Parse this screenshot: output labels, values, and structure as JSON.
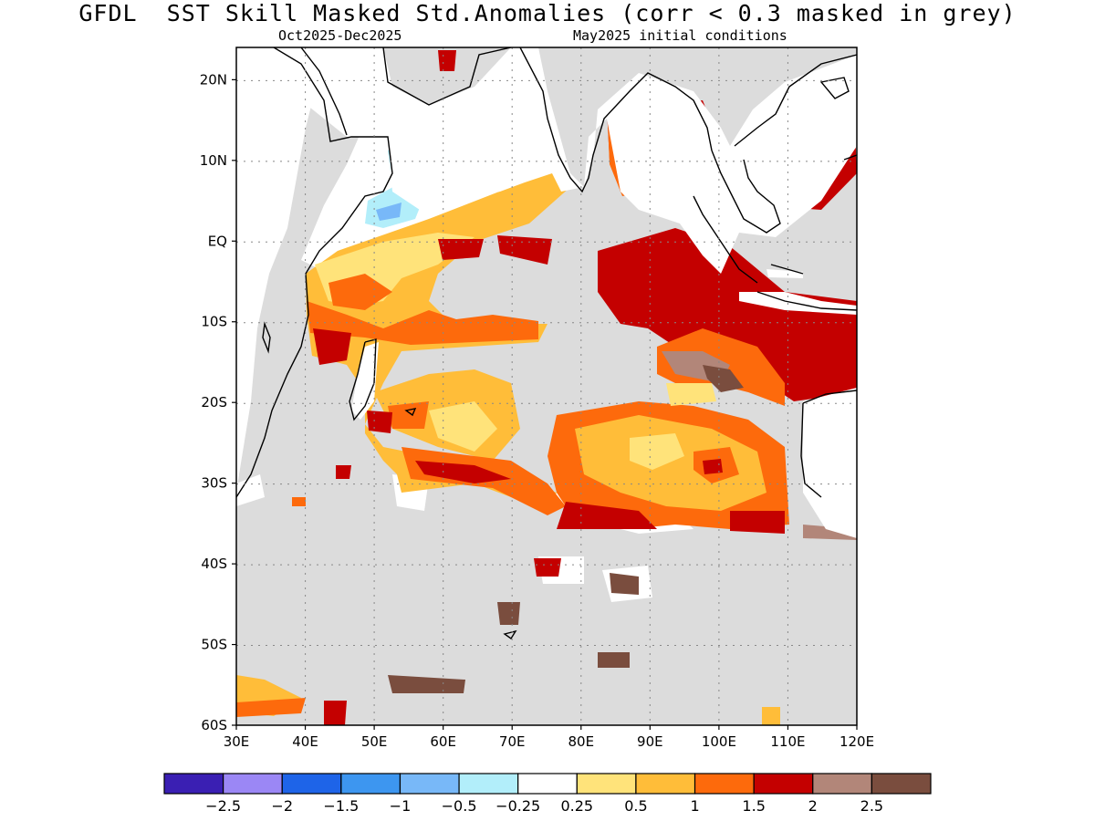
{
  "title": "GFDL  SST Skill Masked Std.Anomalies (corr < 0.3 masked in grey)",
  "subtitle_left": "Oct2025-Dec2025",
  "subtitle_right": "May2025 initial conditions",
  "map": {
    "lon_range": [
      30,
      120
    ],
    "lat_range": [
      -60,
      24
    ],
    "lon_ticks": [
      "30E",
      "40E",
      "50E",
      "60E",
      "70E",
      "80E",
      "90E",
      "100E",
      "110E",
      "120E"
    ],
    "lat_ticks": [
      "20N",
      "10N",
      "EQ",
      "10S",
      "20S",
      "30S",
      "40S",
      "50S",
      "60S"
    ],
    "mask_color": "#dcdcdc",
    "land_color": "#ffffff",
    "grid": "dotted"
  },
  "colorbar": {
    "colors": [
      "#3a1fb3",
      "#9b87f5",
      "#1e64e8",
      "#3d96f0",
      "#78b8f8",
      "#b2eefa",
      "#ffffff",
      "#ffe37a",
      "#ffbd39",
      "#fd6a0c",
      "#c40000",
      "#b28679",
      "#7a4d3e"
    ],
    "labels": [
      "-2.5",
      "-2",
      "-1.5",
      "-1",
      "-0.5",
      "-0.25",
      "0.25",
      "0.5",
      "1",
      "1.5",
      "2",
      "2.5"
    ]
  },
  "icons": [
    "coastline-outline"
  ]
}
